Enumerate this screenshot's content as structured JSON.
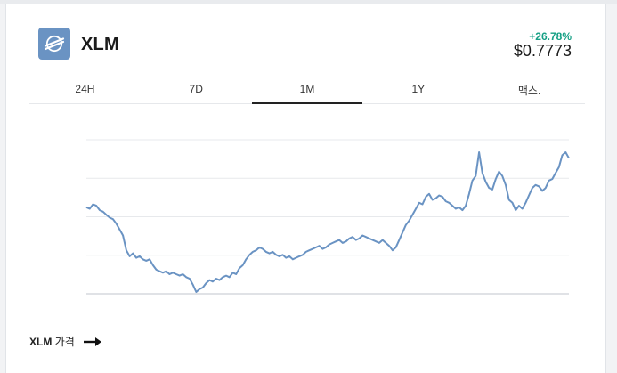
{
  "asset": {
    "symbol": "XLM",
    "icon": "stellar-logo-icon",
    "change": "+26.78%",
    "price": "$0.7773",
    "brand_color": "#6a93c3",
    "change_color": "#16a085"
  },
  "tabs": [
    {
      "label": "24H",
      "active": false
    },
    {
      "label": "7D",
      "active": false
    },
    {
      "label": "1M",
      "active": true
    },
    {
      "label": "1Y",
      "active": false
    },
    {
      "label": "맥스.",
      "active": false
    }
  ],
  "footer": {
    "symbol": "XLM",
    "suffix": "가격",
    "icon": "arrow-right-icon"
  },
  "chart_data": {
    "type": "line",
    "title": "",
    "xlabel": "",
    "ylabel": "",
    "grid": true,
    "gridlines": 5,
    "ylim": [
      0,
      100
    ],
    "line_color": "#6a93c3",
    "series": [
      {
        "values": [
          57,
          56,
          59,
          58,
          55,
          54,
          52,
          50,
          49,
          46,
          42,
          38,
          28,
          24,
          26,
          23,
          24,
          22,
          21,
          22,
          18,
          15,
          14,
          13,
          14,
          12,
          13,
          12,
          11,
          12,
          10,
          9,
          5,
          0,
          2,
          3,
          6,
          8,
          7,
          9,
          8,
          10,
          11,
          10,
          13,
          12,
          16,
          18,
          22,
          25,
          27,
          28,
          30,
          29,
          27,
          26,
          27,
          25,
          24,
          25,
          23,
          24,
          22,
          23,
          24,
          25,
          27,
          28,
          29,
          30,
          31,
          29,
          30,
          32,
          33,
          34,
          35,
          33,
          34,
          36,
          37,
          35,
          36,
          38,
          37,
          36,
          35,
          34,
          33,
          35,
          33,
          31,
          28,
          30,
          35,
          40,
          45,
          48,
          52,
          56,
          60,
          59,
          64,
          66,
          62,
          63,
          65,
          64,
          61,
          60,
          58,
          56,
          57,
          55,
          58,
          66,
          75,
          78,
          94,
          80,
          74,
          70,
          69,
          76,
          81,
          78,
          72,
          62,
          60,
          55,
          58,
          56,
          60,
          65,
          70,
          72,
          71,
          68,
          70,
          75,
          76,
          80,
          84,
          92,
          94,
          90
        ]
      }
    ]
  }
}
